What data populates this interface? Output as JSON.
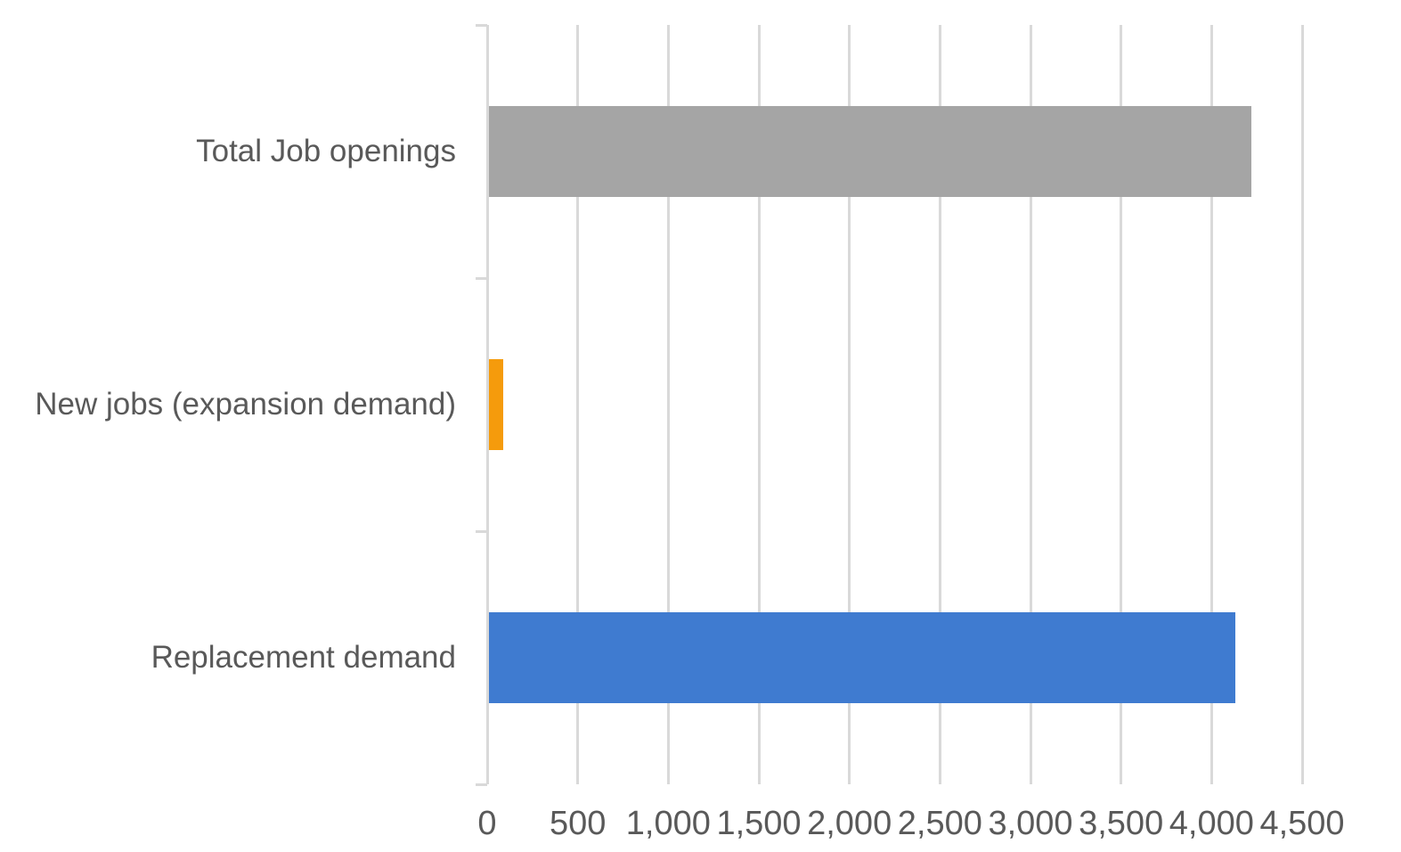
{
  "chart_data": {
    "type": "bar",
    "orientation": "horizontal",
    "title": "",
    "categories": [
      "Total Job openings",
      "New jobs (expansion demand)",
      "Replacement demand"
    ],
    "values": [
      4220,
      90,
      4130
    ],
    "bar_colors": [
      "#A5A5A5",
      "#F59B0C",
      "#3F7BD0"
    ],
    "x_axis": {
      "min": 0,
      "max": 4500,
      "tick_interval": 500,
      "tick_labels": [
        "0",
        "500",
        "1,000",
        "1,500",
        "2,000",
        "2,500",
        "3,000",
        "3,500",
        "4,000",
        "4,500"
      ]
    },
    "grid": true,
    "legend": false,
    "colors": {
      "gridline": "#D9D9D9",
      "axis_text": "#595959",
      "background": "#FFFFFF"
    }
  }
}
